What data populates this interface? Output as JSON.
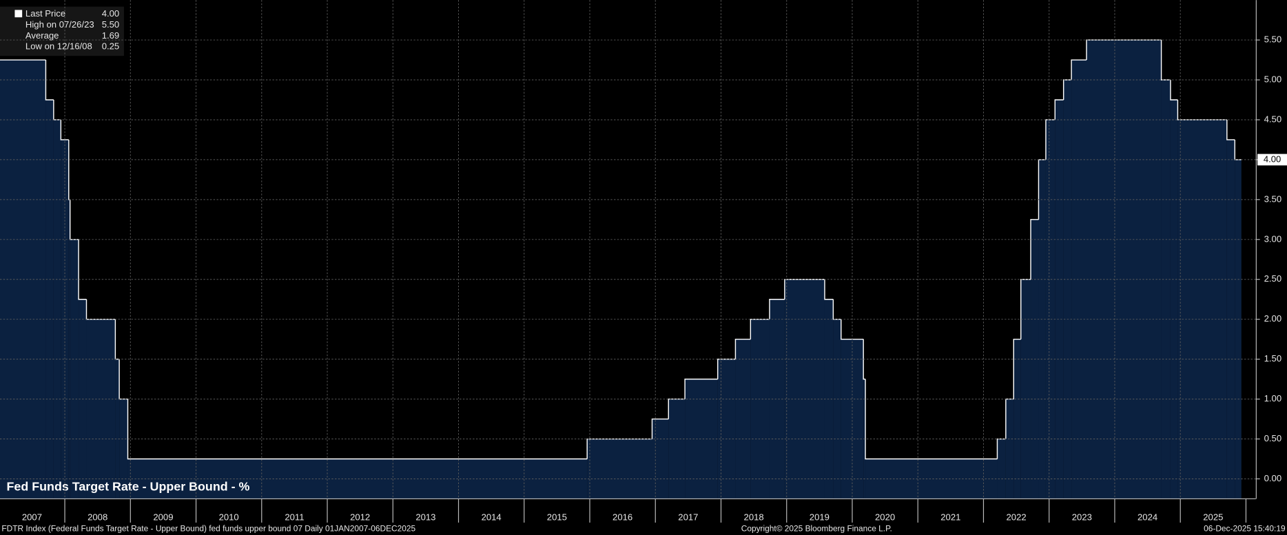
{
  "chart_data": {
    "type": "area",
    "step": true,
    "title": "Fed Funds Target Rate - Upper Bound - %",
    "stats": [
      {
        "label": "Last Price",
        "value": "4.00"
      },
      {
        "label": "High on 07/26/23",
        "value": "5.50"
      },
      {
        "label": "Average",
        "value": "1.69"
      },
      {
        "label": "Low on 12/16/08",
        "value": "0.25"
      }
    ],
    "footer_left": "FDTR Index (Federal Funds Target Rate - Upper Bound) fed funds upper bound 07 Daily 01JAN2007-06DEC2025",
    "footer_center": "Copyright© 2025 Bloomberg Finance L.P.",
    "footer_right": "06-Dec-2025 15:40:19",
    "x": [
      2007.0,
      2007.71,
      2007.83,
      2007.94,
      2008.06,
      2008.08,
      2008.21,
      2008.33,
      2008.77,
      2008.83,
      2008.96,
      2015.96,
      2016.95,
      2017.2,
      2017.45,
      2017.95,
      2018.22,
      2018.45,
      2018.74,
      2018.97,
      2019.58,
      2019.71,
      2019.83,
      2020.17,
      2020.2,
      2022.21,
      2022.34,
      2022.46,
      2022.57,
      2022.72,
      2022.84,
      2022.95,
      2023.09,
      2023.22,
      2023.34,
      2023.57,
      2024.71,
      2024.85,
      2024.96,
      2025.71,
      2025.83,
      2025.93
    ],
    "values": [
      5.25,
      4.75,
      4.5,
      4.25,
      3.5,
      3.0,
      2.25,
      2.0,
      1.5,
      1.0,
      0.25,
      0.5,
      0.75,
      1.0,
      1.25,
      1.5,
      1.75,
      2.0,
      2.25,
      2.5,
      2.25,
      2.0,
      1.75,
      1.25,
      0.25,
      0.5,
      1.0,
      1.75,
      2.5,
      3.25,
      4.0,
      4.5,
      4.75,
      5.0,
      5.25,
      5.5,
      5.0,
      4.75,
      4.5,
      4.25,
      4.0,
      4.0
    ],
    "color": "#0b2140",
    "line_color": "#ffffff",
    "xlim": [
      2007,
      2026.15
    ],
    "xticks": [
      2007,
      2008,
      2009,
      2010,
      2011,
      2012,
      2013,
      2014,
      2015,
      2016,
      2017,
      2018,
      2019,
      2020,
      2021,
      2022,
      2023,
      2024,
      2025
    ],
    "ylim": [
      -0.25,
      6.0
    ],
    "yticks": [
      {
        "value": 0,
        "label": "0.00"
      },
      {
        "value": 0.5,
        "label": "0.50"
      },
      {
        "value": 1,
        "label": "1.00"
      },
      {
        "value": 1.5,
        "label": "1.50"
      },
      {
        "value": 2,
        "label": "2.00"
      },
      {
        "value": 2.5,
        "label": "2.50"
      },
      {
        "value": 3,
        "label": "3.00"
      },
      {
        "value": 3.5,
        "label": "3.50"
      },
      {
        "value": 4,
        "label": "4.00"
      },
      {
        "value": 4.5,
        "label": "4.50"
      },
      {
        "value": 5,
        "label": "5.00"
      },
      {
        "value": 5.5,
        "label": "5.50"
      }
    ],
    "grid": true,
    "y_axis_side": "right"
  }
}
